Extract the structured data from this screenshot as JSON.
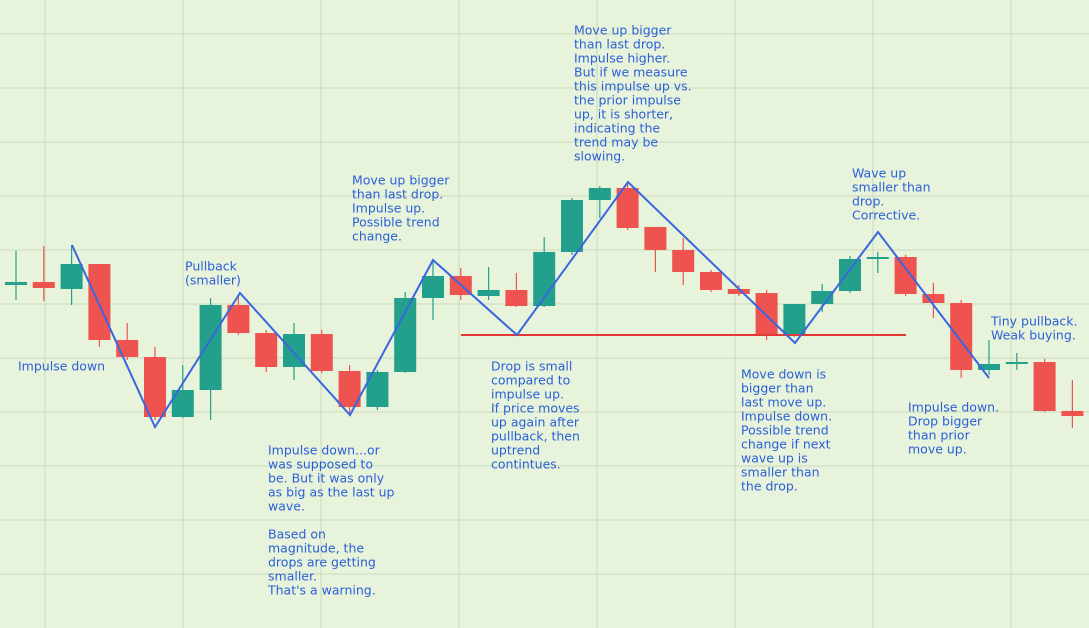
{
  "chart_data": {
    "type": "candlestick",
    "up_color": "#22a08b",
    "down_color": "#ef5350",
    "ylim": [
      0,
      628
    ],
    "yticks": [
      54,
      108,
      162,
      216,
      270,
      324,
      378,
      432,
      486,
      540,
      594
    ],
    "grid": true,
    "open": [
      343,
      346,
      339,
      364,
      288,
      271,
      211,
      238,
      323,
      295,
      261,
      294,
      257,
      221,
      256,
      330,
      352,
      332,
      338,
      322,
      376,
      428,
      440,
      401,
      378,
      356,
      339,
      335,
      292,
      324,
      337,
      369,
      371,
      334,
      325,
      258,
      264,
      266,
      217
    ],
    "high": [
      377,
      382,
      383,
      364,
      305,
      281,
      263,
      330,
      333,
      298,
      305,
      298,
      263,
      258,
      336,
      366,
      360,
      361,
      355,
      391,
      430,
      442,
      446,
      401,
      390,
      358,
      343,
      338,
      324,
      344,
      372,
      376,
      373,
      345,
      328,
      288,
      275,
      269,
      248
    ],
    "low": [
      328,
      327,
      323,
      281,
      268,
      208,
      210,
      208,
      293,
      256,
      248,
      255,
      214,
      218,
      255,
      308,
      328,
      328,
      321,
      321,
      373,
      410,
      398,
      356,
      343,
      336,
      332,
      288,
      291,
      316,
      335,
      355,
      332,
      310,
      250,
      253,
      258,
      216,
      200
    ],
    "close": [
      346,
      340,
      364,
      288,
      271,
      211,
      238,
      323,
      295,
      261,
      294,
      257,
      221,
      256,
      330,
      352,
      333,
      338,
      322,
      376,
      428,
      440,
      400,
      378,
      356,
      338,
      334,
      292,
      324,
      337,
      369,
      371,
      334,
      325,
      258,
      264,
      266,
      217,
      212
    ],
    "annotations": [
      [
        "Impulse down"
      ],
      [
        "Pullback",
        "(smaller)"
      ],
      [
        "Move up bigger",
        "than last drop.",
        "Impulse up.",
        "Possible trend",
        "change."
      ],
      [
        "Move up bigger",
        "than last drop.",
        "Impulse higher.",
        "But if we measure",
        "this impulse up vs.",
        "the prior impulse",
        "up, it is shorter,",
        "indicating the",
        "trend may be",
        "slowing."
      ],
      [
        "Wave up",
        "smaller than",
        "drop.",
        "Corrective."
      ],
      [
        "Tiny pullback.",
        "Weak buying."
      ],
      [
        "Drop is small",
        "compared to",
        "impulse up.",
        "If price moves",
        "up again after",
        "pullback, then",
        "uptrend",
        "contintues."
      ],
      [
        "Impulse down...or",
        "was supposed to",
        "be. But it was only",
        "as big as the last up",
        "wave."
      ],
      [
        "Based on",
        "magnitude, the",
        "drops are getting",
        "smaller.",
        "That's a warning."
      ],
      [
        "Move down is",
        "bigger than",
        "last move up.",
        "Impulse down.",
        "Possible trend",
        "change if next",
        "wave up is",
        "smaller than",
        "the drop."
      ],
      [
        "Impulse down.",
        "Drop bigger",
        "than prior",
        "move up."
      ]
    ]
  }
}
